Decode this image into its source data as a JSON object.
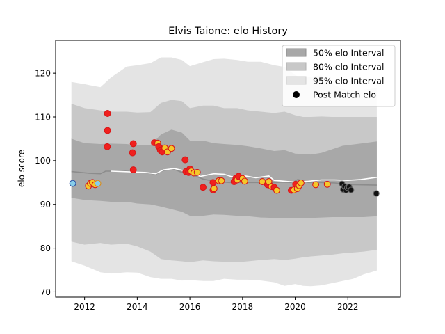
{
  "chart_data": {
    "type": "scatter",
    "title": "Elvis Taione: elo History",
    "xlabel": "",
    "ylabel": "elo score",
    "xlim": [
      2010.9,
      2024.0
    ],
    "ylim": [
      68.8,
      127.5
    ],
    "xticks": [
      2012,
      2014,
      2016,
      2018,
      2020,
      2022
    ],
    "yticks": [
      70,
      80,
      90,
      100,
      110,
      120
    ],
    "legend": {
      "position": "top-right",
      "entries": [
        "50% elo Interval",
        "80% elo Interval",
        "95% elo Interval",
        "Post Match elo"
      ]
    },
    "colors": {
      "band50": "#a8a8a8",
      "band80": "#c8c8c8",
      "band95": "#e4e4e4",
      "mean_line": "#8c8c8c",
      "post_line": "#ffffff",
      "marker_red": "#f0201e",
      "marker_yellow": "#f5c82a",
      "marker_blue": "#87ceeb",
      "marker_black": "#111111",
      "edge_blue": "#2c4fa0",
      "edge_red": "#d81818",
      "edge_orange": "#e08a10",
      "edge_gray": "#666666"
    },
    "bands": {
      "x": [
        2011.5,
        2012.0,
        2012.6,
        2013.0,
        2013.6,
        2014.0,
        2014.5,
        2014.9,
        2015.3,
        2015.7,
        2016.0,
        2016.5,
        2016.9,
        2017.3,
        2017.8,
        2018.2,
        2018.7,
        2019.2,
        2019.6,
        2020.0,
        2020.3,
        2020.6,
        2021.0,
        2021.4,
        2021.8,
        2022.2,
        2022.6,
        2023.1
      ],
      "p95_high": [
        118.0,
        117.5,
        116.8,
        119.0,
        121.5,
        121.8,
        122.3,
        123.6,
        123.6,
        123.0,
        121.6,
        122.5,
        123.2,
        123.3,
        123.0,
        122.6,
        122.6,
        121.8,
        121.4,
        119.6,
        118.8,
        119.2,
        119.5,
        117.6,
        116.4,
        116.0,
        116.2,
        116.6
      ],
      "p80_high": [
        113.0,
        112.0,
        111.5,
        111.2,
        111.2,
        111.0,
        111.1,
        113.2,
        113.9,
        113.6,
        112.0,
        112.6,
        112.6,
        112.0,
        112.0,
        111.5,
        111.2,
        110.9,
        111.2,
        110.4,
        110.0,
        110.0,
        110.1,
        110.0,
        110.0,
        110.0,
        110.0,
        110.0
      ],
      "p50_high": [
        105.0,
        104.0,
        103.8,
        103.9,
        103.8,
        103.5,
        103.5,
        106.0,
        107.1,
        106.4,
        104.6,
        104.6,
        104.0,
        103.8,
        103.6,
        103.3,
        102.8,
        102.2,
        102.4,
        101.6,
        101.5,
        101.4,
        101.8,
        102.6,
        103.4,
        103.7,
        104.0,
        104.4
      ],
      "p50_low": [
        91.5,
        91.0,
        90.8,
        90.6,
        90.6,
        90.2,
        90.0,
        89.5,
        88.9,
        88.3,
        87.4,
        87.4,
        87.7,
        87.6,
        87.4,
        87.3,
        87.0,
        86.9,
        86.9,
        86.8,
        86.8,
        86.9,
        87.0,
        87.1,
        87.1,
        87.1,
        87.1,
        87.3
      ],
      "p80_low": [
        81.5,
        80.8,
        81.2,
        80.8,
        81.0,
        80.4,
        79.2,
        77.5,
        77.2,
        77.0,
        76.8,
        77.2,
        77.0,
        76.9,
        76.8,
        77.0,
        77.3,
        77.5,
        77.3,
        77.6,
        77.9,
        78.1,
        78.3,
        78.5,
        78.8,
        79.0,
        79.2,
        79.6
      ],
      "p95_low": [
        77.0,
        76.0,
        74.5,
        74.2,
        74.5,
        74.4,
        73.4,
        73.0,
        73.0,
        72.6,
        72.7,
        72.5,
        72.5,
        73.0,
        72.8,
        72.8,
        72.6,
        72.2,
        71.4,
        71.8,
        71.4,
        71.3,
        71.5,
        72.0,
        72.5,
        73.0,
        74.0,
        74.9
      ]
    },
    "mean_line": {
      "x": [
        2011.5,
        2012.2,
        2012.6,
        2012.8,
        2013.5,
        2014.3,
        2014.7,
        2015.0,
        2015.4,
        2015.7,
        2016.0,
        2016.5,
        2017.0,
        2017.5,
        2018.0,
        2018.5,
        2019.0,
        2019.5,
        2019.9,
        2020.1,
        2020.5,
        2021.0,
        2021.5,
        2021.8,
        2022.2,
        2023.1
      ],
      "y": [
        97.5,
        97.1,
        97.0,
        97.6,
        97.6,
        97.3,
        96.9,
        97.8,
        98.0,
        97.3,
        97.0,
        95.8,
        95.2,
        95.0,
        95.0,
        95.0,
        94.9,
        95.1,
        95.0,
        95.7,
        95.0,
        95.0,
        94.9,
        94.7,
        94.5,
        94.4
      ]
    },
    "post_match_line": {
      "x": [
        2013.0,
        2014.3,
        2014.7,
        2015.0,
        2015.4,
        2015.7,
        2016.0,
        2016.4,
        2016.9,
        2017.3,
        2017.6,
        2018.0,
        2018.5,
        2019.0,
        2019.2,
        2019.6,
        2020.0,
        2020.5,
        2021.0,
        2021.5,
        2022.0,
        2022.5,
        2023.1
      ],
      "y": [
        97.6,
        97.3,
        97.0,
        97.9,
        98.2,
        97.8,
        97.4,
        96.4,
        97.0,
        96.9,
        96.3,
        96.6,
        96.1,
        96.5,
        95.5,
        95.3,
        95.1,
        95.3,
        95.6,
        95.6,
        95.5,
        95.7,
        96.2
      ]
    },
    "points": [
      {
        "x": 2011.55,
        "y": 94.8,
        "s": "blue"
      },
      {
        "x": 2012.15,
        "y": 94.2,
        "s": "yellow"
      },
      {
        "x": 2012.22,
        "y": 94.8,
        "s": "yellow"
      },
      {
        "x": 2012.3,
        "y": 95.0,
        "s": "yellow"
      },
      {
        "x": 2012.4,
        "y": 94.5,
        "s": "yellow"
      },
      {
        "x": 2012.5,
        "y": 94.8,
        "s": "blueyellow"
      },
      {
        "x": 2012.87,
        "y": 110.8,
        "s": "red"
      },
      {
        "x": 2012.87,
        "y": 106.9,
        "s": "red"
      },
      {
        "x": 2012.86,
        "y": 103.2,
        "s": "red"
      },
      {
        "x": 2013.85,
        "y": 103.9,
        "s": "red"
      },
      {
        "x": 2013.82,
        "y": 101.8,
        "s": "red"
      },
      {
        "x": 2013.85,
        "y": 97.9,
        "s": "red"
      },
      {
        "x": 2014.65,
        "y": 104.1,
        "s": "red"
      },
      {
        "x": 2014.78,
        "y": 104.0,
        "s": "yellow"
      },
      {
        "x": 2014.82,
        "y": 103.2,
        "s": "red"
      },
      {
        "x": 2014.88,
        "y": 102.4,
        "s": "red"
      },
      {
        "x": 2014.95,
        "y": 102.0,
        "s": "red"
      },
      {
        "x": 2015.05,
        "y": 102.9,
        "s": "yellow"
      },
      {
        "x": 2015.15,
        "y": 102.0,
        "s": "yellow"
      },
      {
        "x": 2015.3,
        "y": 102.8,
        "s": "yellow"
      },
      {
        "x": 2015.82,
        "y": 100.2,
        "s": "red"
      },
      {
        "x": 2015.85,
        "y": 97.5,
        "s": "red"
      },
      {
        "x": 2015.95,
        "y": 97.3,
        "s": "red"
      },
      {
        "x": 2016.0,
        "y": 98.1,
        "s": "red"
      },
      {
        "x": 2016.05,
        "y": 97.6,
        "s": "yellow"
      },
      {
        "x": 2016.15,
        "y": 97.2,
        "s": "yellow"
      },
      {
        "x": 2016.28,
        "y": 97.3,
        "s": "yellow"
      },
      {
        "x": 2016.5,
        "y": 93.9,
        "s": "red"
      },
      {
        "x": 2016.88,
        "y": 95.0,
        "s": "red"
      },
      {
        "x": 2016.88,
        "y": 93.3,
        "s": "red"
      },
      {
        "x": 2016.92,
        "y": 93.6,
        "s": "yellow"
      },
      {
        "x": 2017.1,
        "y": 95.4,
        "s": "yellow"
      },
      {
        "x": 2017.2,
        "y": 95.4,
        "s": "yellow"
      },
      {
        "x": 2017.68,
        "y": 95.2,
        "s": "red"
      },
      {
        "x": 2017.75,
        "y": 96.0,
        "s": "red"
      },
      {
        "x": 2017.8,
        "y": 95.6,
        "s": "yellow"
      },
      {
        "x": 2017.85,
        "y": 96.4,
        "s": "red"
      },
      {
        "x": 2018.0,
        "y": 95.9,
        "s": "yellow"
      },
      {
        "x": 2018.08,
        "y": 95.3,
        "s": "yellow"
      },
      {
        "x": 2018.75,
        "y": 95.2,
        "s": "yellow"
      },
      {
        "x": 2018.95,
        "y": 94.5,
        "s": "red"
      },
      {
        "x": 2019.0,
        "y": 95.2,
        "s": "yellow"
      },
      {
        "x": 2019.1,
        "y": 94.1,
        "s": "yellow"
      },
      {
        "x": 2019.2,
        "y": 93.9,
        "s": "red"
      },
      {
        "x": 2019.3,
        "y": 93.2,
        "s": "yellow"
      },
      {
        "x": 2019.85,
        "y": 93.2,
        "s": "red"
      },
      {
        "x": 2019.95,
        "y": 93.3,
        "s": "yellow"
      },
      {
        "x": 2020.02,
        "y": 94.6,
        "s": "red"
      },
      {
        "x": 2020.08,
        "y": 93.6,
        "s": "yellow"
      },
      {
        "x": 2020.15,
        "y": 94.3,
        "s": "yellow"
      },
      {
        "x": 2020.22,
        "y": 94.9,
        "s": "yellow"
      },
      {
        "x": 2020.78,
        "y": 94.5,
        "s": "yellow"
      },
      {
        "x": 2021.22,
        "y": 94.6,
        "s": "yellow"
      },
      {
        "x": 2021.78,
        "y": 94.7,
        "s": "black"
      },
      {
        "x": 2021.82,
        "y": 93.4,
        "s": "black"
      },
      {
        "x": 2021.88,
        "y": 94.1,
        "s": "black"
      },
      {
        "x": 2021.93,
        "y": 93.2,
        "s": "black"
      },
      {
        "x": 2021.98,
        "y": 93.8,
        "s": "black"
      },
      {
        "x": 2022.05,
        "y": 94.0,
        "s": "black"
      },
      {
        "x": 2022.12,
        "y": 93.3,
        "s": "black"
      },
      {
        "x": 2023.08,
        "y": 92.5,
        "s": "black"
      }
    ]
  }
}
